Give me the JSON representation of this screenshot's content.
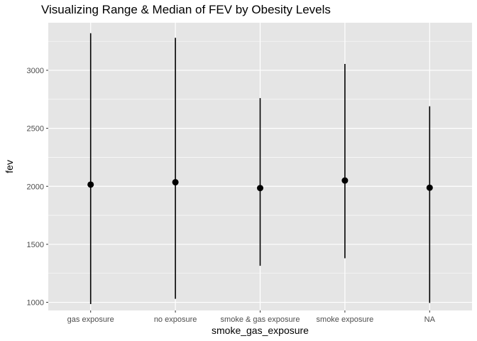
{
  "chart_data": {
    "type": "pointrange",
    "title": "Visualizing Range & Median of FEV by Obesity Levels",
    "xlabel": "smoke_gas_exposure",
    "ylabel": "fev",
    "categories": [
      "gas exposure",
      "no exposure",
      "smoke & gas exposure",
      "smoke exposure",
      "NA"
    ],
    "series": [
      {
        "min": [
          985,
          1030,
          1315,
          1380,
          995
        ],
        "median": [
          2015,
          2035,
          1985,
          2050,
          1988
        ],
        "max": [
          3320,
          3280,
          2760,
          3055,
          2690
        ]
      }
    ],
    "ylim": [
      930,
      3410
    ],
    "yticks": [
      1000,
      1500,
      2000,
      2500,
      3000
    ],
    "ytick_labels": [
      "1000",
      "1500",
      "2000",
      "2500",
      "3000"
    ],
    "grid": true,
    "colors": {
      "panel": "#e5e5e5",
      "grid": "#ffffff",
      "mark": "#000000"
    }
  }
}
